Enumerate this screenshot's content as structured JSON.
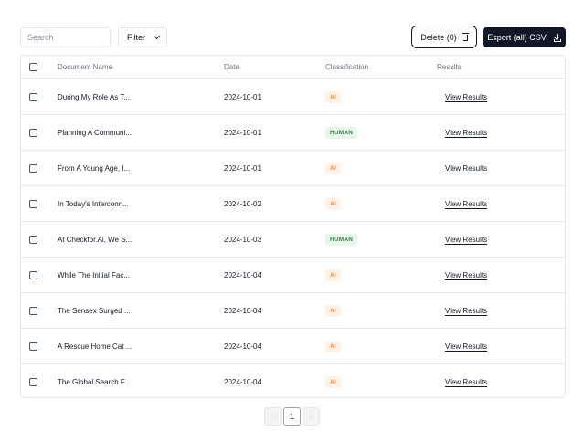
{
  "toolbar": {
    "search_placeholder": "Search",
    "search_value": "",
    "filter_label": "Filter",
    "delete_label": "Delete (0)",
    "export_label": "Export (all) CSV"
  },
  "table": {
    "headers": {
      "name": "Document Name",
      "date": "Date",
      "classification": "Classification",
      "results": "Results"
    },
    "rows": [
      {
        "name": "During My Role As T...",
        "date": "2024-10-01",
        "classification": "AI",
        "results": "View Results"
      },
      {
        "name": "Planning A Communi...",
        "date": "2024-10-01",
        "classification": "HUMAN",
        "results": "View Results"
      },
      {
        "name": "From A Young Age, I...",
        "date": "2024-10-01",
        "classification": "AI",
        "results": "View Results"
      },
      {
        "name": "In Today's Interconn...",
        "date": "2024-10-02",
        "classification": "AI",
        "results": "View Results"
      },
      {
        "name": "At Checkfor.Ai, We S...",
        "date": "2024-10-03",
        "classification": "HUMAN",
        "results": "View Results"
      },
      {
        "name": "While The Initial Fac...",
        "date": "2024-10-04",
        "classification": "AI",
        "results": "View Results"
      },
      {
        "name": "The Sensex Surged ...",
        "date": "2024-10-04",
        "classification": "AI",
        "results": "View Results"
      },
      {
        "name": "A Rescue Home Cat ...",
        "date": "2024-10-04",
        "classification": "AI",
        "results": "View Results"
      },
      {
        "name": "The Global Search F...",
        "date": "2024-10-04",
        "classification": "AI",
        "results": "View Results"
      }
    ]
  },
  "pagination": {
    "prev_label": "‹",
    "current_page": "1",
    "next_label": "›"
  },
  "colors": {
    "ai_badge_text": "#f08a45",
    "ai_badge_bg": "#fff1e6",
    "human_badge_text": "#2f8a3e",
    "human_badge_bg": "#e8f5ea",
    "primary_button": "#101828"
  }
}
